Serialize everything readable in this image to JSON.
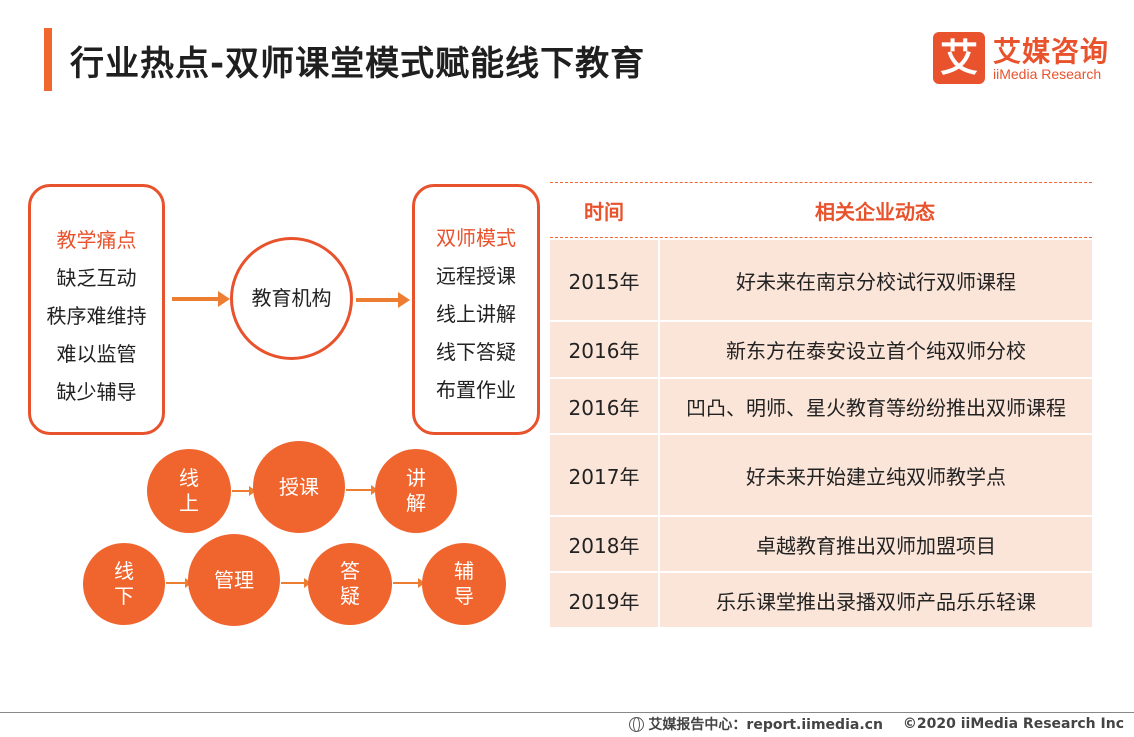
{
  "header": {
    "title": "行业热点-双师课堂模式赋能线下教育"
  },
  "logo": {
    "mark": "艾",
    "cn": "艾媒咨询",
    "en": "iiMedia Research"
  },
  "flow": {
    "pain_points": {
      "heading": "教学痛点",
      "items": [
        "缺乏互动",
        "秩序难维持",
        "难以监管",
        "缺少辅导"
      ]
    },
    "center": "教育机构",
    "dual_mode": {
      "heading": "双师模式",
      "items": [
        "远程授课",
        "线上讲解",
        "线下答疑",
        "布置作业"
      ]
    },
    "online_chain": [
      "线\n上",
      "授课",
      "讲\n解"
    ],
    "offline_chain": [
      "线\n下",
      "管理",
      "答\n疑",
      "辅\n导"
    ]
  },
  "table": {
    "columns": [
      "时间",
      "相关企业动态"
    ],
    "rows": [
      {
        "year": "2015年",
        "event": "好未来在南京分校试行双师课程"
      },
      {
        "year": "2016年",
        "event": "新东方在泰安设立首个纯双师分校"
      },
      {
        "year": "2016年",
        "event": "凹凸、明师、星火教育等纷纷推出双师课程"
      },
      {
        "year": "2017年",
        "event": "好未来开始建立纯双师教学点"
      },
      {
        "year": "2018年",
        "event": "卓越教育推出双师加盟项目"
      },
      {
        "year": "2019年",
        "event": "乐乐课堂推出录播双师产品乐乐轻课"
      }
    ]
  },
  "footer": {
    "source": "艾媒报告中心：report.iimedia.cn",
    "copyright": "©2020  iiMedia Research  Inc"
  },
  "colors": {
    "accent": "#e8532d",
    "table_fill": "#fbe5d9"
  }
}
